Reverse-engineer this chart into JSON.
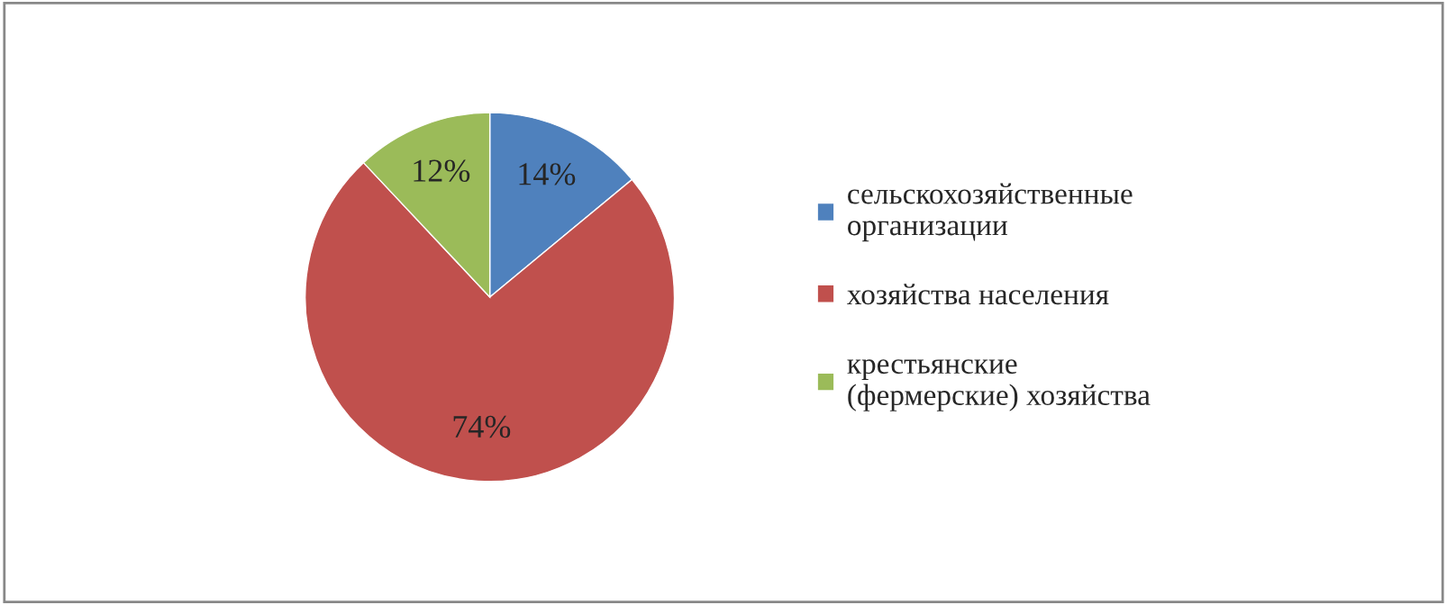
{
  "chart_data": {
    "type": "pie",
    "categories": [
      "сельскохозяйственные организации",
      "хозяйства населения",
      "крестьянские (фермерские) хозяйства"
    ],
    "values": [
      14,
      74,
      12
    ],
    "value_labels": [
      "14%",
      "74%",
      "12%"
    ],
    "colors": [
      "#4f81bd",
      "#c0504d",
      "#9bbb59"
    ],
    "legend": "right"
  }
}
